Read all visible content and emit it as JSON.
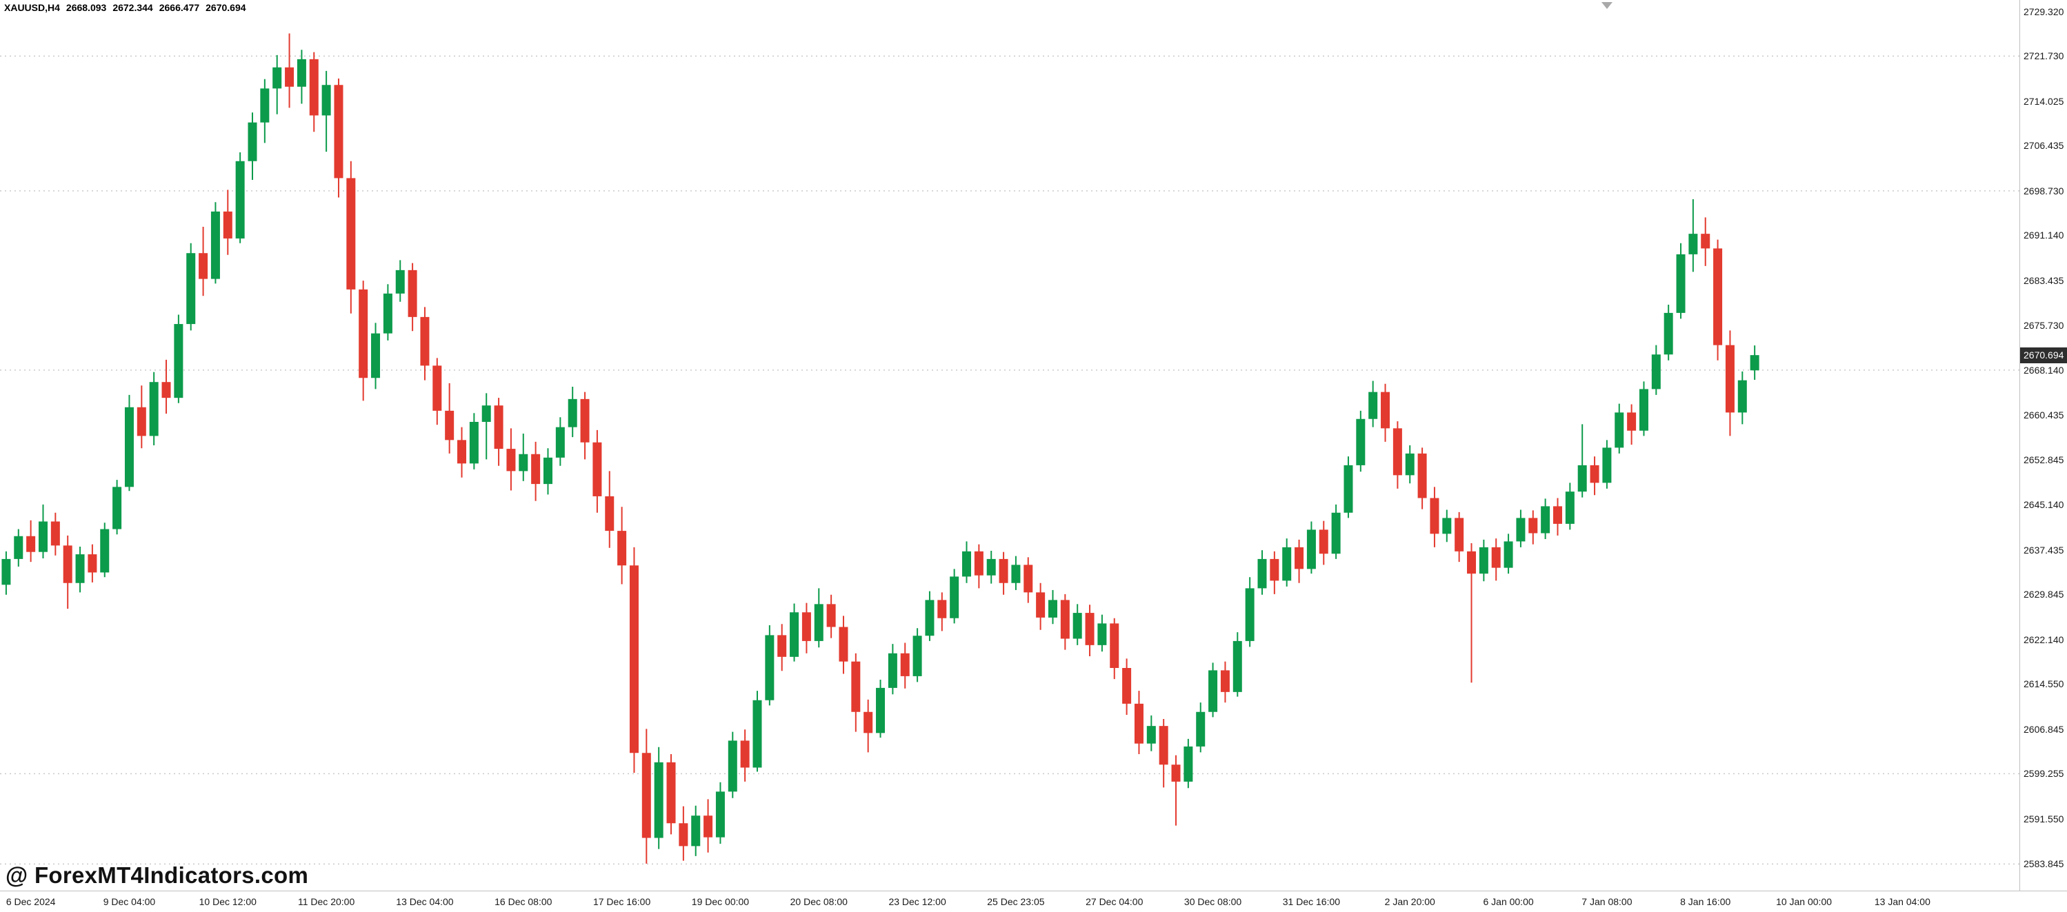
{
  "header": {
    "symbol_tf": "XAUUSD,H4",
    "open": "2668.093",
    "high": "2672.344",
    "low": "2666.477",
    "close": "2670.694"
  },
  "watermark": {
    "text": "@ ForexMT4Indicators.com"
  },
  "chart_data": {
    "type": "candlestick",
    "symbol": "XAUUSD",
    "timeframe": "H4",
    "bid": 2670.694,
    "bid_label": "2670.694",
    "ylim": [
      2579.3,
      2731.3
    ],
    "total_slots": 164,
    "levels": [
      2721.73,
      2698.73,
      2668.14,
      2599.255,
      2583.845
    ],
    "price_axis": {
      "labels": [
        "2729.320",
        "2721.730",
        "2714.025",
        "2706.435",
        "2698.730",
        "2691.140",
        "2683.435",
        "2675.730",
        "2668.140",
        "2660.435",
        "2652.845",
        "2645.140",
        "2637.435",
        "2629.845",
        "2622.140",
        "2614.550",
        "2606.845",
        "2599.255",
        "2591.550",
        "2583.845"
      ]
    },
    "time_axis": {
      "labels": [
        {
          "text": "6 Dec 2024",
          "bar": 2
        },
        {
          "text": "9 Dec 04:00",
          "bar": 10
        },
        {
          "text": "10 Dec 12:00",
          "bar": 18
        },
        {
          "text": "11 Dec 20:00",
          "bar": 26
        },
        {
          "text": "13 Dec 04:00",
          "bar": 34
        },
        {
          "text": "16 Dec 08:00",
          "bar": 42
        },
        {
          "text": "17 Dec 16:00",
          "bar": 50
        },
        {
          "text": "19 Dec 00:00",
          "bar": 58
        },
        {
          "text": "20 Dec 08:00",
          "bar": 66
        },
        {
          "text": "23 Dec 12:00",
          "bar": 74
        },
        {
          "text": "25 Dec 23:05",
          "bar": 82
        },
        {
          "text": "27 Dec 04:00",
          "bar": 90
        },
        {
          "text": "30 Dec 08:00",
          "bar": 98
        },
        {
          "text": "31 Dec 16:00",
          "bar": 106
        },
        {
          "text": "2 Jan 20:00",
          "bar": 114
        },
        {
          "text": "6 Jan 00:00",
          "bar": 122
        },
        {
          "text": "7 Jan 08:00",
          "bar": 130
        },
        {
          "text": "8 Jan 16:00",
          "bar": 138
        },
        {
          "text": "10 Jan 00:00",
          "bar": 146
        },
        {
          "text": "13 Jan 04:00",
          "bar": 154
        }
      ]
    },
    "colors": {
      "bull": "#0c9b4b",
      "bear": "#e33a2f",
      "grid": "#c9c9c9",
      "axis_text": "#1a1a1a",
      "badge_bg": "#2e2e2e",
      "badge_text": "#ffffff",
      "background": "#ffffff"
    },
    "candles": [
      [
        2631.5,
        2637.2,
        2629.8,
        2635.9
      ],
      [
        2635.9,
        2641.0,
        2634.6,
        2639.8
      ],
      [
        2639.8,
        2642.5,
        2635.4,
        2637.1
      ],
      [
        2637.1,
        2645.2,
        2636.0,
        2642.3
      ],
      [
        2642.3,
        2643.8,
        2636.5,
        2638.2
      ],
      [
        2638.2,
        2639.9,
        2627.4,
        2631.8
      ],
      [
        2631.8,
        2638.0,
        2630.2,
        2636.7
      ],
      [
        2636.7,
        2638.4,
        2631.9,
        2633.6
      ],
      [
        2633.6,
        2642.1,
        2632.8,
        2641.0
      ],
      [
        2641.0,
        2649.4,
        2640.1,
        2648.2
      ],
      [
        2648.2,
        2663.9,
        2647.5,
        2661.8
      ],
      [
        2661.8,
        2665.5,
        2654.8,
        2656.9
      ],
      [
        2656.9,
        2667.8,
        2655.3,
        2666.1
      ],
      [
        2666.1,
        2669.9,
        2660.7,
        2663.4
      ],
      [
        2663.4,
        2677.6,
        2662.5,
        2676.0
      ],
      [
        2676.0,
        2689.8,
        2674.9,
        2688.1
      ],
      [
        2688.1,
        2692.6,
        2680.8,
        2683.7
      ],
      [
        2683.7,
        2696.8,
        2682.9,
        2695.2
      ],
      [
        2695.2,
        2698.9,
        2687.8,
        2690.6
      ],
      [
        2690.6,
        2705.3,
        2689.8,
        2703.8
      ],
      [
        2703.8,
        2712.1,
        2700.6,
        2710.4
      ],
      [
        2710.4,
        2717.8,
        2706.9,
        2716.2
      ],
      [
        2716.2,
        2721.9,
        2711.8,
        2719.8
      ],
      [
        2719.8,
        2725.6,
        2712.9,
        2716.5
      ],
      [
        2716.5,
        2722.8,
        2713.6,
        2721.2
      ],
      [
        2721.2,
        2722.4,
        2708.8,
        2711.6
      ],
      [
        2711.6,
        2719.2,
        2705.4,
        2716.8
      ],
      [
        2716.8,
        2717.9,
        2697.6,
        2700.9
      ],
      [
        2700.9,
        2703.8,
        2677.8,
        2681.9
      ],
      [
        2681.9,
        2683.4,
        2662.9,
        2666.8
      ],
      [
        2666.8,
        2676.2,
        2664.9,
        2674.4
      ],
      [
        2674.4,
        2682.8,
        2673.2,
        2681.2
      ],
      [
        2681.2,
        2686.9,
        2679.8,
        2685.2
      ],
      [
        2685.2,
        2686.4,
        2674.8,
        2677.2
      ],
      [
        2677.2,
        2678.9,
        2666.4,
        2668.9
      ],
      [
        2668.9,
        2670.2,
        2658.8,
        2661.2
      ],
      [
        2661.2,
        2665.9,
        2653.9,
        2656.2
      ],
      [
        2656.2,
        2658.4,
        2649.8,
        2652.2
      ],
      [
        2652.2,
        2660.8,
        2651.2,
        2659.3
      ],
      [
        2659.3,
        2664.2,
        2652.9,
        2662.1
      ],
      [
        2662.1,
        2663.4,
        2651.8,
        2654.7
      ],
      [
        2654.7,
        2658.2,
        2647.6,
        2650.9
      ],
      [
        2650.9,
        2657.3,
        2649.2,
        2653.8
      ],
      [
        2653.8,
        2655.9,
        2645.8,
        2648.7
      ],
      [
        2648.7,
        2654.8,
        2646.9,
        2653.2
      ],
      [
        2653.2,
        2660.1,
        2651.8,
        2658.4
      ],
      [
        2658.4,
        2665.3,
        2656.7,
        2663.2
      ],
      [
        2663.2,
        2664.4,
        2652.9,
        2655.8
      ],
      [
        2655.8,
        2657.9,
        2643.8,
        2646.6
      ],
      [
        2646.6,
        2650.9,
        2637.8,
        2640.7
      ],
      [
        2640.7,
        2644.8,
        2631.6,
        2634.8
      ],
      [
        2634.8,
        2637.9,
        2599.4,
        2602.8
      ],
      [
        2602.8,
        2606.9,
        2583.9,
        2588.3
      ],
      [
        2588.3,
        2603.8,
        2586.4,
        2601.2
      ],
      [
        2601.2,
        2602.6,
        2588.9,
        2590.8
      ],
      [
        2590.8,
        2593.7,
        2584.4,
        2586.9
      ],
      [
        2586.9,
        2593.8,
        2585.2,
        2592.1
      ],
      [
        2592.1,
        2594.9,
        2585.8,
        2588.4
      ],
      [
        2588.4,
        2597.8,
        2587.3,
        2596.2
      ],
      [
        2596.2,
        2606.4,
        2595.1,
        2604.9
      ],
      [
        2604.9,
        2606.8,
        2597.9,
        2600.3
      ],
      [
        2600.3,
        2613.4,
        2599.6,
        2611.8
      ],
      [
        2611.8,
        2624.6,
        2610.9,
        2622.9
      ],
      [
        2622.9,
        2624.8,
        2616.8,
        2619.2
      ],
      [
        2619.2,
        2628.3,
        2618.4,
        2626.8
      ],
      [
        2626.8,
        2628.4,
        2619.8,
        2621.9
      ],
      [
        2621.9,
        2630.9,
        2620.8,
        2628.2
      ],
      [
        2628.2,
        2629.8,
        2622.4,
        2624.3
      ],
      [
        2624.3,
        2626.2,
        2616.3,
        2618.4
      ],
      [
        2618.4,
        2619.8,
        2606.4,
        2609.8
      ],
      [
        2609.8,
        2611.9,
        2602.9,
        2606.2
      ],
      [
        2606.2,
        2615.3,
        2605.4,
        2613.9
      ],
      [
        2613.9,
        2621.4,
        2612.8,
        2619.8
      ],
      [
        2619.8,
        2621.6,
        2613.8,
        2615.9
      ],
      [
        2615.9,
        2624.1,
        2614.9,
        2622.8
      ],
      [
        2622.8,
        2630.4,
        2621.9,
        2628.9
      ],
      [
        2628.9,
        2630.2,
        2623.6,
        2625.8
      ],
      [
        2625.8,
        2634.2,
        2624.9,
        2632.9
      ],
      [
        2632.9,
        2638.9,
        2631.8,
        2637.2
      ],
      [
        2637.2,
        2638.4,
        2630.9,
        2633.1
      ],
      [
        2633.1,
        2637.3,
        2631.7,
        2635.9
      ],
      [
        2635.9,
        2637.1,
        2629.8,
        2631.8
      ],
      [
        2631.8,
        2636.4,
        2630.6,
        2634.9
      ],
      [
        2634.9,
        2636.2,
        2628.4,
        2630.2
      ],
      [
        2630.2,
        2631.8,
        2623.8,
        2625.9
      ],
      [
        2625.9,
        2630.6,
        2624.8,
        2628.9
      ],
      [
        2628.9,
        2629.9,
        2620.4,
        2622.3
      ],
      [
        2622.3,
        2628.2,
        2621.2,
        2626.7
      ],
      [
        2626.7,
        2628.1,
        2619.3,
        2621.2
      ],
      [
        2621.2,
        2626.4,
        2620.1,
        2624.9
      ],
      [
        2624.9,
        2625.8,
        2615.4,
        2617.3
      ],
      [
        2617.3,
        2618.9,
        2609.3,
        2611.2
      ],
      [
        2611.2,
        2613.4,
        2602.6,
        2604.4
      ],
      [
        2604.4,
        2609.2,
        2603.1,
        2607.4
      ],
      [
        2607.4,
        2608.6,
        2596.9,
        2600.8
      ],
      [
        2600.8,
        2602.4,
        2590.4,
        2597.9
      ],
      [
        2597.9,
        2605.2,
        2596.8,
        2603.9
      ],
      [
        2603.9,
        2611.4,
        2602.9,
        2609.8
      ],
      [
        2609.8,
        2618.2,
        2608.9,
        2616.9
      ],
      [
        2616.9,
        2618.4,
        2611.4,
        2613.2
      ],
      [
        2613.2,
        2623.4,
        2612.4,
        2621.9
      ],
      [
        2621.9,
        2632.8,
        2620.9,
        2630.9
      ],
      [
        2630.9,
        2637.4,
        2629.8,
        2635.9
      ],
      [
        2635.9,
        2637.2,
        2629.9,
        2632.2
      ],
      [
        2632.2,
        2639.4,
        2631.2,
        2637.9
      ],
      [
        2637.9,
        2639.2,
        2631.8,
        2634.2
      ],
      [
        2634.2,
        2642.3,
        2633.4,
        2640.9
      ],
      [
        2640.9,
        2642.4,
        2634.9,
        2636.8
      ],
      [
        2636.8,
        2645.2,
        2635.9,
        2643.8
      ],
      [
        2643.8,
        2653.4,
        2642.9,
        2651.9
      ],
      [
        2651.9,
        2661.2,
        2650.8,
        2659.8
      ],
      [
        2659.8,
        2666.3,
        2658.4,
        2664.4
      ],
      [
        2664.4,
        2665.8,
        2655.9,
        2658.2
      ],
      [
        2658.2,
        2659.4,
        2647.9,
        2650.2
      ],
      [
        2650.2,
        2655.3,
        2648.8,
        2653.9
      ],
      [
        2653.9,
        2654.9,
        2644.4,
        2646.3
      ],
      [
        2646.3,
        2648.2,
        2637.9,
        2640.2
      ],
      [
        2640.2,
        2644.3,
        2638.8,
        2642.9
      ],
      [
        2642.9,
        2643.9,
        2635.4,
        2637.2
      ],
      [
        2637.2,
        2638.6,
        2614.8,
        2633.4
      ],
      [
        2633.4,
        2639.2,
        2632.1,
        2637.9
      ],
      [
        2637.9,
        2639.4,
        2632.2,
        2634.4
      ],
      [
        2634.4,
        2640.2,
        2633.4,
        2638.9
      ],
      [
        2638.9,
        2644.3,
        2637.9,
        2642.9
      ],
      [
        2642.9,
        2644.2,
        2638.4,
        2640.3
      ],
      [
        2640.3,
        2646.2,
        2639.3,
        2644.9
      ],
      [
        2644.9,
        2646.3,
        2639.9,
        2641.9
      ],
      [
        2641.9,
        2648.9,
        2640.9,
        2647.4
      ],
      [
        2647.4,
        2658.9,
        2646.4,
        2651.9
      ],
      [
        2651.9,
        2653.4,
        2646.8,
        2648.9
      ],
      [
        2648.9,
        2656.2,
        2647.9,
        2654.9
      ],
      [
        2654.9,
        2662.4,
        2653.9,
        2660.9
      ],
      [
        2660.9,
        2662.3,
        2655.4,
        2657.8
      ],
      [
        2657.8,
        2666.2,
        2656.9,
        2664.9
      ],
      [
        2664.9,
        2672.4,
        2663.9,
        2670.8
      ],
      [
        2670.8,
        2679.3,
        2669.8,
        2677.9
      ],
      [
        2677.9,
        2689.8,
        2676.9,
        2687.9
      ],
      [
        2687.9,
        2697.3,
        2684.9,
        2691.4
      ],
      [
        2691.4,
        2694.2,
        2685.9,
        2688.9
      ],
      [
        2688.9,
        2690.4,
        2669.8,
        2672.4
      ],
      [
        2672.4,
        2674.9,
        2656.9,
        2660.9
      ],
      [
        2660.9,
        2667.9,
        2658.9,
        2666.4
      ],
      [
        2668.093,
        2672.344,
        2666.477,
        2670.694
      ]
    ]
  }
}
